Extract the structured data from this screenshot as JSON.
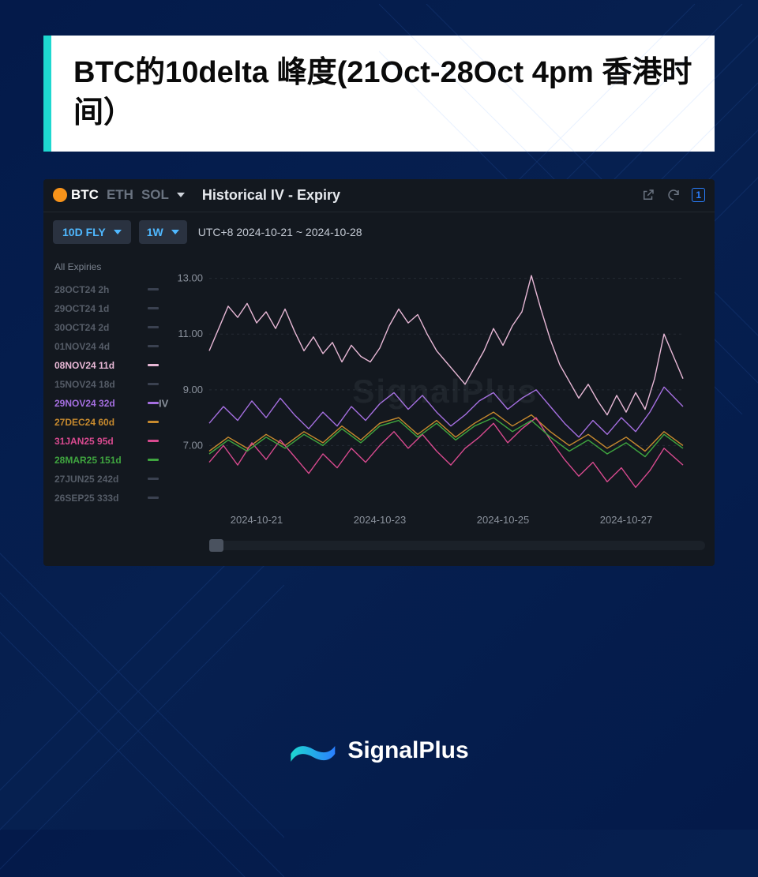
{
  "title": "BTC的10delta 峰度(21Oct-28Oct 4pm 香港时间）",
  "brand": "SignalPlus",
  "panel": {
    "assets": [
      {
        "label": "BTC",
        "active": true
      },
      {
        "label": "ETH",
        "active": false
      },
      {
        "label": "SOL",
        "active": false
      }
    ],
    "panel_title": "Historical IV - Expiry",
    "metric_dropdown": "10D FLY",
    "range_dropdown": "1W",
    "date_range": "UTC+8 2024-10-21 ~ 2024-10-28",
    "watermark": "SignalPlus"
  },
  "expiries": {
    "header": "All Expiries",
    "items": [
      {
        "label": "28OCT24 2h",
        "color": "#3a4150",
        "active": false
      },
      {
        "label": "29OCT24 1d",
        "color": "#3a4150",
        "active": false
      },
      {
        "label": "30OCT24 2d",
        "color": "#3a4150",
        "active": false
      },
      {
        "label": "01NOV24 4d",
        "color": "#3a4150",
        "active": false
      },
      {
        "label": "08NOV24 11d",
        "color": "#e8b8d6",
        "active": true
      },
      {
        "label": "15NOV24 18d",
        "color": "#3a4150",
        "active": false
      },
      {
        "label": "29NOV24 32d",
        "color": "#a56fe0",
        "active": true
      },
      {
        "label": "27DEC24 60d",
        "color": "#c78a2e",
        "active": true
      },
      {
        "label": "31JAN25 95d",
        "color": "#d84a8f",
        "active": true
      },
      {
        "label": "28MAR25 151d",
        "color": "#3fa53f",
        "active": true
      },
      {
        "label": "27JUN25 242d",
        "color": "#3a4150",
        "active": false
      },
      {
        "label": "26SEP25 333d",
        "color": "#3a4150",
        "active": false
      }
    ]
  },
  "chart": {
    "type": "line",
    "background": "#13181f",
    "grid_color": "#252b34",
    "axis_text_color": "#8a919c",
    "axis_fontsize": 13,
    "ylabel": "IV",
    "ylim": [
      5.0,
      13.5
    ],
    "yticks": [
      7.0,
      9.0,
      11.0,
      13.0
    ],
    "ytick_labels": [
      "7.00",
      "9.00",
      "11.00",
      "13.00"
    ],
    "x_domain": [
      0,
      100
    ],
    "xticks": [
      10,
      36,
      62,
      88
    ],
    "xtick_labels": [
      "2024-10-21",
      "2024-10-23",
      "2024-10-25",
      "2024-10-27"
    ],
    "line_width": 1.4,
    "series": [
      {
        "name": "08NOV24 11d",
        "color": "#e8b8d6",
        "points": [
          [
            0,
            10.4
          ],
          [
            2,
            11.2
          ],
          [
            4,
            12.0
          ],
          [
            6,
            11.6
          ],
          [
            8,
            12.1
          ],
          [
            10,
            11.4
          ],
          [
            12,
            11.8
          ],
          [
            14,
            11.2
          ],
          [
            16,
            11.9
          ],
          [
            18,
            11.1
          ],
          [
            20,
            10.4
          ],
          [
            22,
            10.9
          ],
          [
            24,
            10.3
          ],
          [
            26,
            10.7
          ],
          [
            28,
            10.0
          ],
          [
            30,
            10.6
          ],
          [
            32,
            10.2
          ],
          [
            34,
            10.0
          ],
          [
            36,
            10.5
          ],
          [
            38,
            11.3
          ],
          [
            40,
            11.9
          ],
          [
            42,
            11.4
          ],
          [
            44,
            11.7
          ],
          [
            46,
            11.0
          ],
          [
            48,
            10.4
          ],
          [
            50,
            10.0
          ],
          [
            52,
            9.6
          ],
          [
            54,
            9.2
          ],
          [
            56,
            9.8
          ],
          [
            58,
            10.4
          ],
          [
            60,
            11.2
          ],
          [
            62,
            10.6
          ],
          [
            64,
            11.3
          ],
          [
            66,
            11.8
          ],
          [
            68,
            13.1
          ],
          [
            70,
            11.9
          ],
          [
            72,
            10.8
          ],
          [
            74,
            9.9
          ],
          [
            76,
            9.3
          ],
          [
            78,
            8.7
          ],
          [
            80,
            9.2
          ],
          [
            82,
            8.6
          ],
          [
            84,
            8.1
          ],
          [
            86,
            8.8
          ],
          [
            88,
            8.2
          ],
          [
            90,
            8.9
          ],
          [
            92,
            8.3
          ],
          [
            94,
            9.4
          ],
          [
            96,
            11.0
          ],
          [
            98,
            10.2
          ],
          [
            100,
            9.4
          ]
        ]
      },
      {
        "name": "29NOV24 32d",
        "color": "#a56fe0",
        "points": [
          [
            0,
            7.8
          ],
          [
            3,
            8.4
          ],
          [
            6,
            7.9
          ],
          [
            9,
            8.6
          ],
          [
            12,
            8.0
          ],
          [
            15,
            8.7
          ],
          [
            18,
            8.1
          ],
          [
            21,
            7.6
          ],
          [
            24,
            8.2
          ],
          [
            27,
            7.7
          ],
          [
            30,
            8.4
          ],
          [
            33,
            7.9
          ],
          [
            36,
            8.5
          ],
          [
            39,
            8.9
          ],
          [
            42,
            8.3
          ],
          [
            45,
            8.8
          ],
          [
            48,
            8.2
          ],
          [
            51,
            7.7
          ],
          [
            54,
            8.1
          ],
          [
            57,
            8.6
          ],
          [
            60,
            8.9
          ],
          [
            63,
            8.3
          ],
          [
            66,
            8.7
          ],
          [
            69,
            9.0
          ],
          [
            72,
            8.4
          ],
          [
            75,
            7.8
          ],
          [
            78,
            7.3
          ],
          [
            81,
            7.9
          ],
          [
            84,
            7.4
          ],
          [
            87,
            8.0
          ],
          [
            90,
            7.5
          ],
          [
            93,
            8.2
          ],
          [
            96,
            9.1
          ],
          [
            100,
            8.4
          ]
        ]
      },
      {
        "name": "27DEC24 60d",
        "color": "#c78a2e",
        "points": [
          [
            0,
            6.8
          ],
          [
            4,
            7.3
          ],
          [
            8,
            6.9
          ],
          [
            12,
            7.4
          ],
          [
            16,
            7.0
          ],
          [
            20,
            7.5
          ],
          [
            24,
            7.1
          ],
          [
            28,
            7.7
          ],
          [
            32,
            7.2
          ],
          [
            36,
            7.8
          ],
          [
            40,
            8.0
          ],
          [
            44,
            7.4
          ],
          [
            48,
            7.9
          ],
          [
            52,
            7.3
          ],
          [
            56,
            7.8
          ],
          [
            60,
            8.2
          ],
          [
            64,
            7.7
          ],
          [
            68,
            8.1
          ],
          [
            72,
            7.5
          ],
          [
            76,
            7.0
          ],
          [
            80,
            7.4
          ],
          [
            84,
            6.9
          ],
          [
            88,
            7.3
          ],
          [
            92,
            6.8
          ],
          [
            96,
            7.5
          ],
          [
            100,
            7.0
          ]
        ]
      },
      {
        "name": "31JAN25 95d",
        "color": "#d84a8f",
        "points": [
          [
            0,
            6.4
          ],
          [
            3,
            7.0
          ],
          [
            6,
            6.3
          ],
          [
            9,
            7.1
          ],
          [
            12,
            6.5
          ],
          [
            15,
            7.2
          ],
          [
            18,
            6.6
          ],
          [
            21,
            6.0
          ],
          [
            24,
            6.7
          ],
          [
            27,
            6.2
          ],
          [
            30,
            6.9
          ],
          [
            33,
            6.4
          ],
          [
            36,
            7.0
          ],
          [
            39,
            7.5
          ],
          [
            42,
            6.9
          ],
          [
            45,
            7.4
          ],
          [
            48,
            6.8
          ],
          [
            51,
            6.3
          ],
          [
            54,
            6.9
          ],
          [
            57,
            7.3
          ],
          [
            60,
            7.8
          ],
          [
            63,
            7.1
          ],
          [
            66,
            7.6
          ],
          [
            69,
            8.0
          ],
          [
            72,
            7.2
          ],
          [
            75,
            6.5
          ],
          [
            78,
            5.9
          ],
          [
            81,
            6.4
          ],
          [
            84,
            5.7
          ],
          [
            87,
            6.2
          ],
          [
            90,
            5.5
          ],
          [
            93,
            6.1
          ],
          [
            96,
            6.9
          ],
          [
            100,
            6.3
          ]
        ]
      },
      {
        "name": "28MAR25 151d",
        "color": "#3fa53f",
        "points": [
          [
            0,
            6.7
          ],
          [
            4,
            7.2
          ],
          [
            8,
            6.8
          ],
          [
            12,
            7.3
          ],
          [
            16,
            6.9
          ],
          [
            20,
            7.4
          ],
          [
            24,
            7.0
          ],
          [
            28,
            7.6
          ],
          [
            32,
            7.1
          ],
          [
            36,
            7.7
          ],
          [
            40,
            7.9
          ],
          [
            44,
            7.3
          ],
          [
            48,
            7.8
          ],
          [
            52,
            7.2
          ],
          [
            56,
            7.7
          ],
          [
            60,
            8.0
          ],
          [
            64,
            7.5
          ],
          [
            68,
            7.9
          ],
          [
            72,
            7.3
          ],
          [
            76,
            6.8
          ],
          [
            80,
            7.2
          ],
          [
            84,
            6.7
          ],
          [
            88,
            7.1
          ],
          [
            92,
            6.6
          ],
          [
            96,
            7.4
          ],
          [
            100,
            6.9
          ]
        ]
      }
    ]
  },
  "brand_colors": {
    "teal": "#1ed8d0",
    "blue": "#2a7fff"
  }
}
